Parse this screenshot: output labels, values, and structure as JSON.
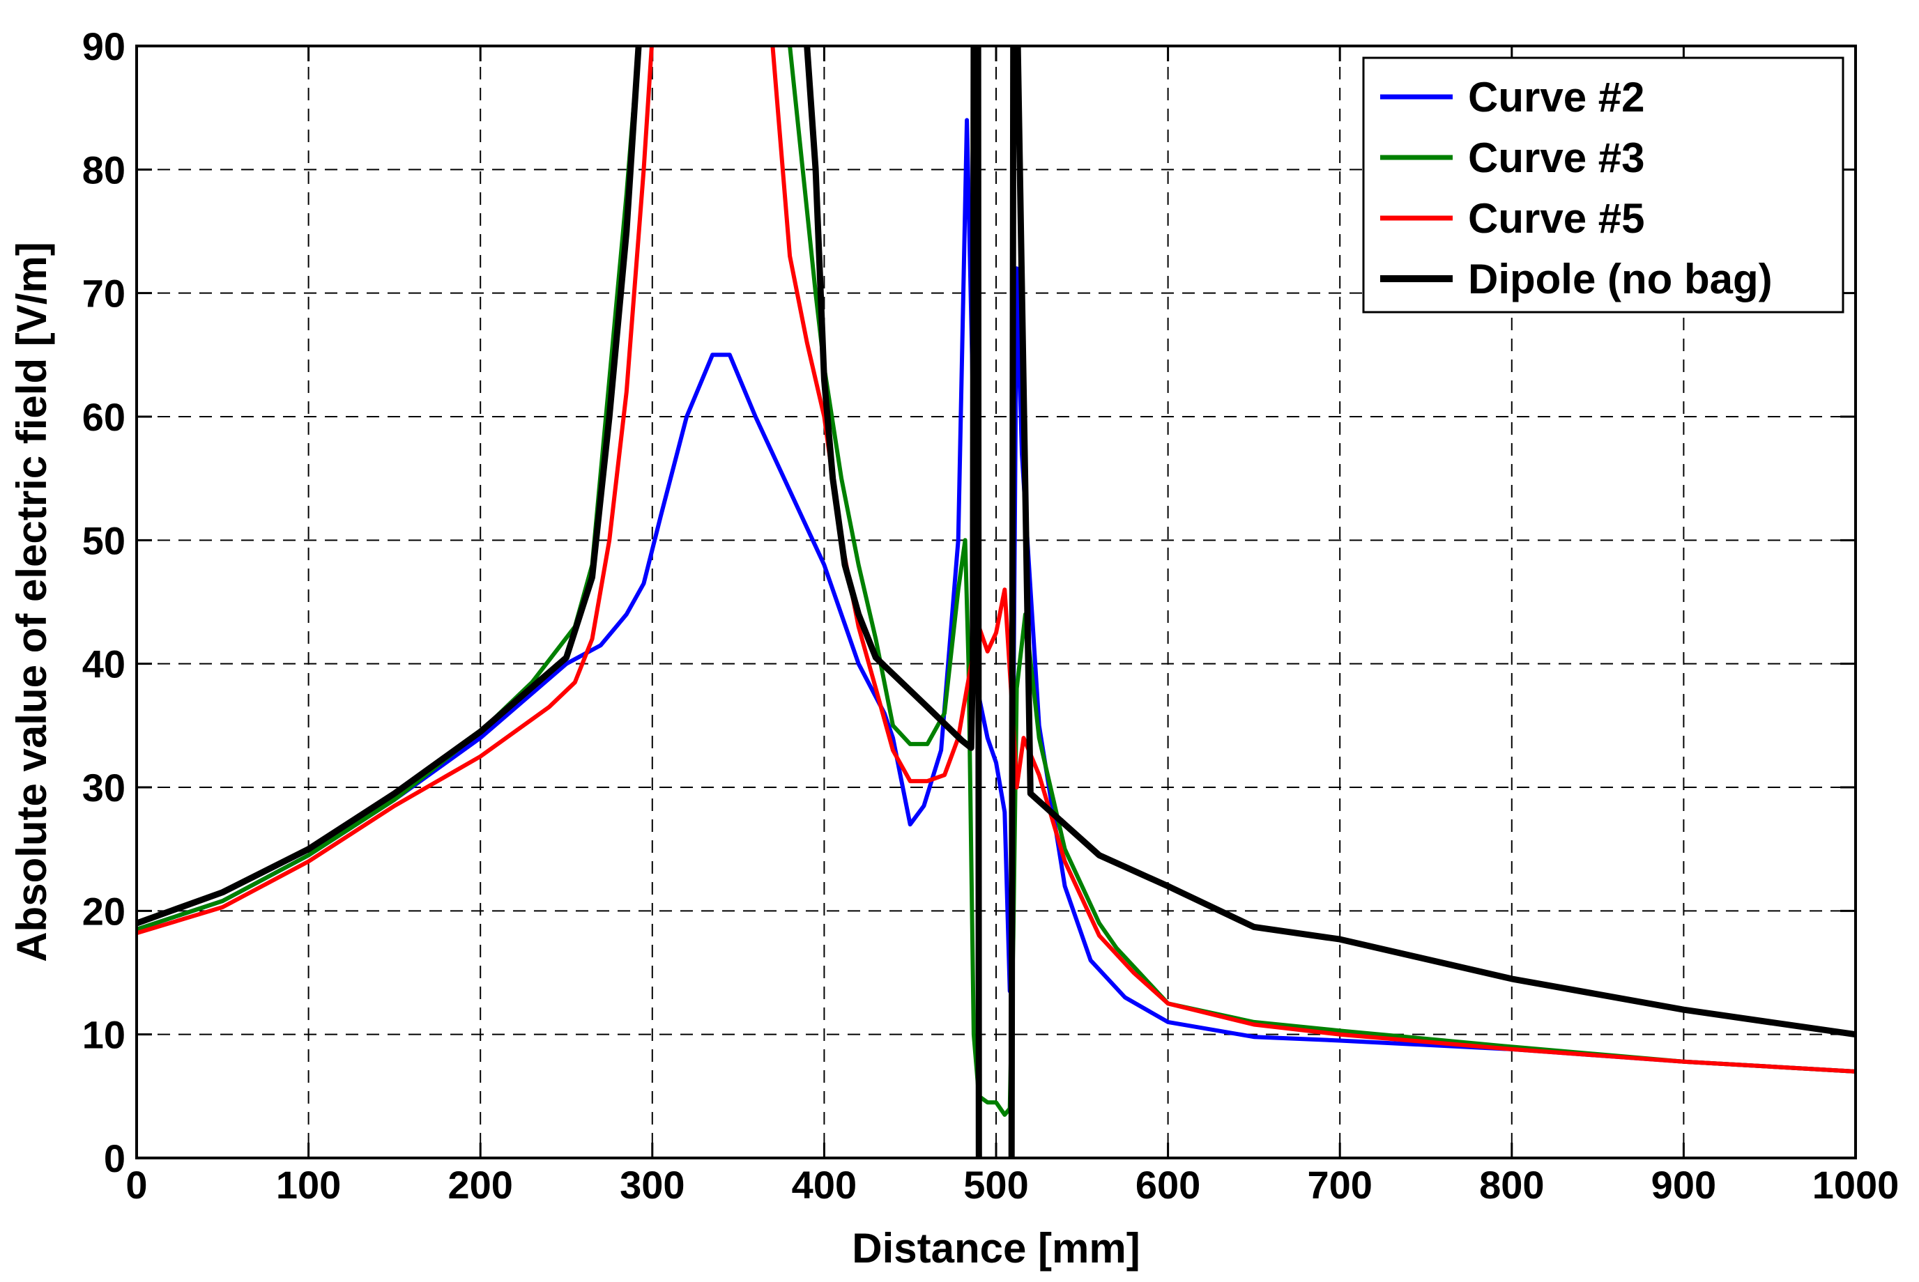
{
  "chart_data": {
    "type": "line",
    "title": "",
    "xlabel": "Distance [mm]",
    "ylabel": "Absolute value of electric field [V/m]",
    "xlim": [
      0,
      1000
    ],
    "ylim": [
      0,
      90
    ],
    "xticks": [
      0,
      100,
      200,
      300,
      400,
      500,
      600,
      700,
      800,
      900,
      1000
    ],
    "yticks": [
      0,
      10,
      20,
      30,
      40,
      50,
      60,
      70,
      80,
      90
    ],
    "grid": true,
    "legend_position": "top-right",
    "series": [
      {
        "name": "Curve #2",
        "color": "#0000ff",
        "x": [
          0,
          50,
          100,
          150,
          200,
          250,
          270,
          285,
          295,
          305,
          320,
          335,
          345,
          360,
          380,
          400,
          420,
          435,
          440,
          450,
          458,
          468,
          478,
          483,
          486,
          489,
          495,
          500,
          505,
          508,
          510,
          512,
          515,
          525,
          540,
          555,
          575,
          600,
          650,
          700,
          800,
          900,
          1000
        ],
        "y": [
          18.5,
          20.8,
          24.5,
          29,
          34,
          40,
          41.5,
          44,
          46.5,
          52,
          60,
          65,
          65,
          60,
          54,
          48,
          40,
          36,
          34,
          27,
          28.5,
          33,
          50,
          84,
          65,
          38,
          34,
          32,
          28,
          13.5,
          35,
          72,
          57,
          35,
          22,
          16,
          13,
          11,
          9.8,
          9.5,
          8.8,
          7.8,
          7
        ]
      },
      {
        "name": "Curve #3",
        "color": "#008000",
        "x": [
          0,
          50,
          100,
          150,
          200,
          230,
          255,
          265,
          275,
          285,
          292,
          300,
          310,
          320,
          330,
          372,
          380,
          395,
          400,
          410,
          420,
          430,
          440,
          450,
          460,
          470,
          478,
          482,
          484,
          487,
          490,
          495,
          500,
          505,
          508,
          510,
          512,
          517,
          525,
          540,
          560,
          570,
          600,
          650,
          700,
          800,
          900,
          1000
        ],
        "y": [
          18.5,
          20.8,
          24.5,
          29,
          34.5,
          38.5,
          43,
          48,
          63,
          78,
          90,
          95,
          95,
          95,
          95,
          95,
          90,
          70,
          64,
          55,
          48,
          42,
          35,
          33.5,
          33.5,
          36,
          46,
          50,
          40,
          10,
          5,
          4.5,
          4.5,
          3.5,
          4,
          18,
          38,
          44,
          34,
          25,
          19,
          17,
          12.5,
          11,
          10.3,
          9,
          7.8,
          7
        ]
      },
      {
        "name": "Curve #5",
        "color": "#ff0000",
        "x": [
          0,
          50,
          100,
          150,
          200,
          240,
          255,
          265,
          275,
          285,
          295,
          302,
          310,
          320,
          330,
          365,
          370,
          380,
          390,
          400,
          410,
          420,
          430,
          440,
          450,
          460,
          470,
          478,
          483,
          487,
          490,
          495,
          500,
          505,
          510,
          512,
          516,
          525,
          540,
          560,
          580,
          600,
          650,
          700,
          800,
          900,
          1000
        ],
        "y": [
          18.2,
          20.3,
          24,
          28.5,
          32.5,
          36.5,
          38.5,
          42,
          50,
          62,
          80,
          95,
          95,
          95,
          95,
          95,
          90,
          73,
          66,
          60,
          50,
          43,
          38,
          33,
          30.5,
          30.5,
          31,
          34,
          38,
          41,
          43,
          41,
          42.5,
          46,
          35,
          30,
          34,
          31,
          24,
          18,
          15,
          12.5,
          10.8,
          10,
          8.8,
          7.8,
          7
        ]
      },
      {
        "name": "Dipole (no bag)",
        "color": "#000000",
        "x": [
          0,
          20,
          50,
          100,
          150,
          200,
          250,
          265,
          275,
          285,
          292,
          300,
          310,
          320,
          330,
          370,
          380,
          390,
          395,
          400,
          405,
          412,
          420,
          430,
          460,
          480,
          485.5,
          486.5,
          487,
          488,
          489.5,
          490,
          490.5,
          500,
          508.5,
          509,
          510,
          511.5,
          512,
          520,
          540,
          560,
          600,
          650,
          700,
          800,
          900,
          1000
        ],
        "y": [
          19,
          20,
          21.5,
          25,
          29.5,
          34.5,
          40.5,
          47,
          60,
          75,
          90,
          95,
          95,
          95,
          95,
          95,
          95,
          90,
          80,
          63,
          55,
          48,
          44,
          40.5,
          36.5,
          33.8,
          33.2,
          40,
          90,
          95,
          95,
          0,
          -5,
          -5,
          -5,
          0,
          90,
          95,
          95,
          29.5,
          27,
          24.5,
          22,
          18.7,
          17.7,
          14.5,
          12,
          10
        ]
      }
    ]
  }
}
